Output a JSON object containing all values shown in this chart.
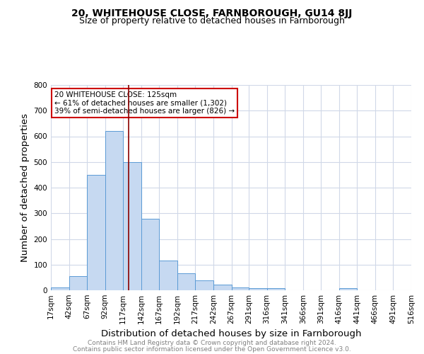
{
  "title": "20, WHITEHOUSE CLOSE, FARNBOROUGH, GU14 8JJ",
  "subtitle": "Size of property relative to detached houses in Farnborough",
  "xlabel": "Distribution of detached houses by size in Farnborough",
  "ylabel": "Number of detached properties",
  "bin_edges": [
    17,
    42,
    67,
    92,
    117,
    142,
    167,
    192,
    217,
    242,
    267,
    291,
    316,
    341,
    366,
    391,
    416,
    441,
    466,
    491,
    516
  ],
  "bar_heights": [
    10,
    55,
    450,
    620,
    500,
    280,
    115,
    65,
    38,
    22,
    10,
    8,
    7,
    0,
    0,
    0,
    7,
    0,
    0,
    0
  ],
  "bar_color": "#c6d9f1",
  "bar_edge_color": "#5b9bd5",
  "property_size": 125,
  "vline_color": "#8b0000",
  "annotation_text": "20 WHITEHOUSE CLOSE: 125sqm\n← 61% of detached houses are smaller (1,302)\n39% of semi-detached houses are larger (826) →",
  "annotation_box_color": "#ffffff",
  "annotation_box_edge": "#cc0000",
  "ylim": [
    0,
    800
  ],
  "yticks": [
    0,
    100,
    200,
    300,
    400,
    500,
    600,
    700,
    800
  ],
  "footer_line1": "Contains HM Land Registry data © Crown copyright and database right 2024.",
  "footer_line2": "Contains public sector information licensed under the Open Government Licence v3.0.",
  "bg_color": "#ffffff",
  "grid_color": "#d0d8e8",
  "title_fontsize": 10,
  "subtitle_fontsize": 9,
  "axis_label_fontsize": 9.5,
  "tick_fontsize": 7.5,
  "footer_fontsize": 6.5
}
